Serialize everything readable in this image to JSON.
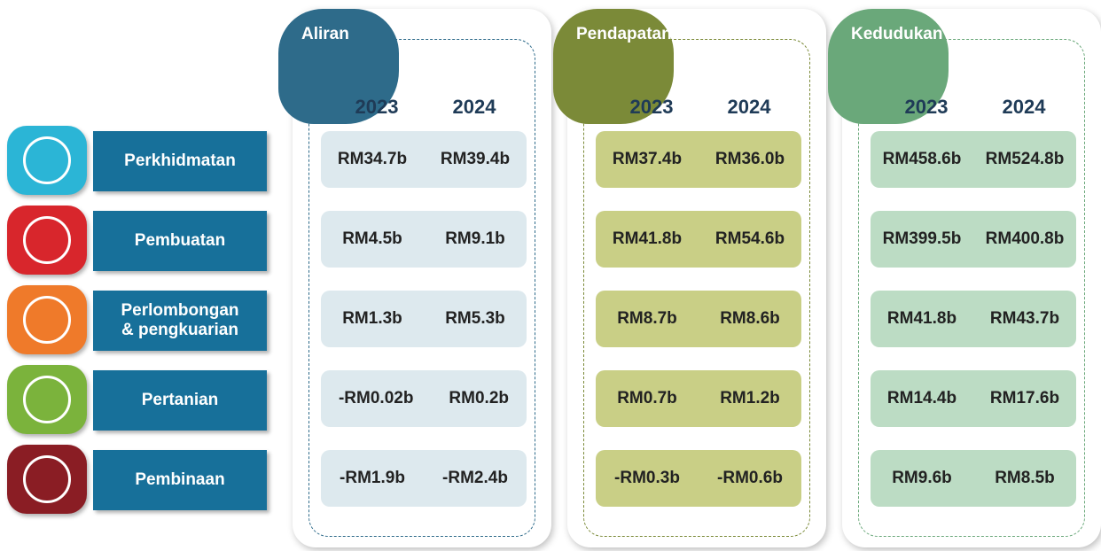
{
  "sectors": [
    "Perkhidmatan",
    "Pembuatan",
    "Perlombongan & pengkuarian",
    "Pertanian",
    "Pembinaan"
  ],
  "panels": [
    {
      "title": "Aliran",
      "years": [
        "2023",
        "2024"
      ],
      "rows": [
        [
          "RM34.7b",
          "RM39.4b"
        ],
        [
          "RM4.5b",
          "RM9.1b"
        ],
        [
          "RM1.3b",
          "RM5.3b"
        ],
        [
          "-RM0.02b",
          "RM0.2b"
        ],
        [
          "-RM1.9b",
          "-RM2.4b"
        ]
      ]
    },
    {
      "title": "Pendapatan",
      "years": [
        "2023",
        "2024"
      ],
      "rows": [
        [
          "RM37.4b",
          "RM36.0b"
        ],
        [
          "RM41.8b",
          "RM54.6b"
        ],
        [
          "RM8.7b",
          "RM8.6b"
        ],
        [
          "RM0.7b",
          "RM1.2b"
        ],
        [
          "-RM0.3b",
          "-RM0.6b"
        ]
      ]
    },
    {
      "title": "Kedudukan",
      "years": [
        "2023",
        "2024"
      ],
      "rows": [
        [
          "RM458.6b",
          "RM524.8b"
        ],
        [
          "RM399.5b",
          "RM400.8b"
        ],
        [
          "RM41.8b",
          "RM43.7b"
        ],
        [
          "RM14.4b",
          "RM17.6b"
        ],
        [
          "RM9.6b",
          "RM8.5b"
        ]
      ]
    }
  ]
}
